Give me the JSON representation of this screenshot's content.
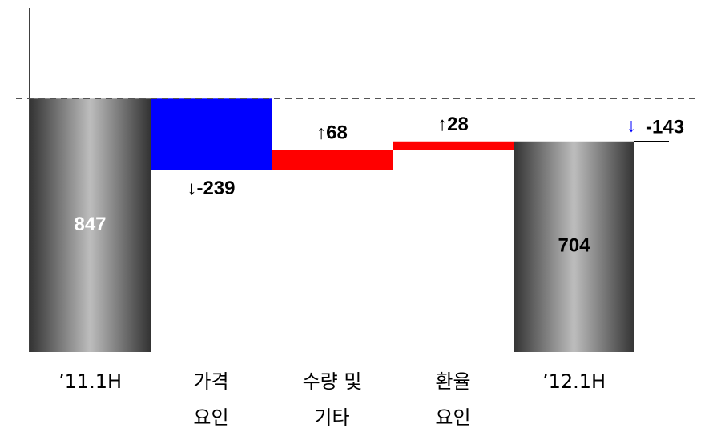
{
  "chart_data": {
    "type": "waterfall",
    "categories": [
      [
        "’11.1H"
      ],
      [
        "가격",
        "요인"
      ],
      [
        "수량 및",
        "기타"
      ],
      [
        "환율",
        "요인"
      ],
      [
        "’12.1H"
      ]
    ],
    "values": [
      847,
      -239,
      68,
      28,
      704
    ],
    "value_labels": [
      "847",
      "↓-239",
      "↑68",
      "↑28",
      "704"
    ],
    "kinds": [
      "total",
      "delta",
      "delta",
      "delta",
      "total"
    ],
    "colors": {
      "increase": "#ff0000",
      "decrease": "#0000ff",
      "total": "#808080"
    },
    "change": {
      "value": -143,
      "label": "-143",
      "arrow": "↓",
      "arrow_color": "#0000ff"
    },
    "ylim": [
      0,
      1150
    ]
  }
}
